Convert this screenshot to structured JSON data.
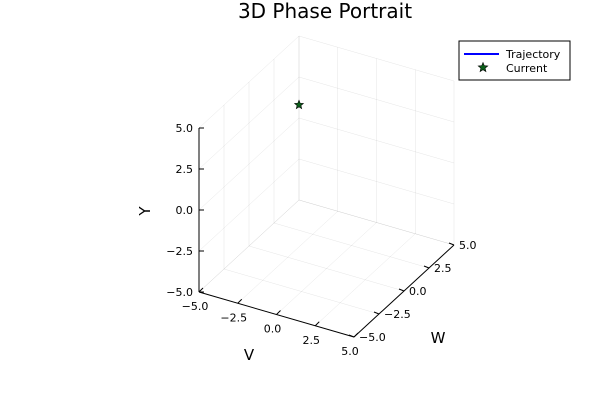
{
  "chart_data": {
    "type": "scatter",
    "projection": "3d",
    "title": "3D Phase Portrait",
    "xlabel": "V",
    "ylabel": "W",
    "zlabel": "Y",
    "xlim": [
      -5,
      5
    ],
    "ylim": [
      -5,
      5
    ],
    "zlim": [
      -5,
      5
    ],
    "xticks": [
      -5,
      -2.5,
      0,
      2.5,
      5
    ],
    "yticks": [
      -5,
      -2.5,
      0,
      2.5,
      5
    ],
    "zticks": [
      -5,
      -2.5,
      0,
      2.5,
      5
    ],
    "xtick_labels": [
      "−5.0",
      "−2.5",
      "0.0",
      "2.5",
      "5.0"
    ],
    "ytick_labels": [
      "−5.0",
      "−2.5",
      "0.0",
      "2.5",
      "5.0"
    ],
    "ztick_labels": [
      "−5.0",
      "−2.5",
      "0.0",
      "2.5",
      "5.0"
    ],
    "grid": true,
    "legend_position": "top-right",
    "series": [
      {
        "name": "Trajectory",
        "kind": "line",
        "color": "#0000ff",
        "points": []
      },
      {
        "name": "Current",
        "kind": "marker",
        "marker": "star",
        "color": "#0b5f1a",
        "points": [
          {
            "x": -5,
            "y": 5,
            "z": 0.8
          }
        ]
      }
    ]
  }
}
